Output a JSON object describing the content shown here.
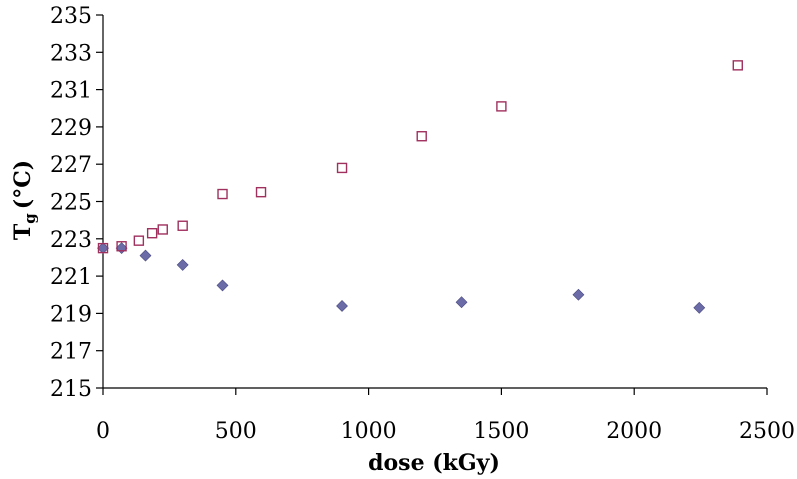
{
  "chart_data": {
    "type": "scatter",
    "title": "",
    "xlabel": "dose (kGy)",
    "ylabel_main": "T",
    "ylabel_sub": "g",
    "ylabel_unit": "(°C)",
    "xlim": [
      0,
      2500
    ],
    "ylim": [
      215,
      235
    ],
    "xticks": [
      0,
      500,
      1000,
      1500,
      2000,
      2500
    ],
    "yticks": [
      215,
      217,
      219,
      221,
      223,
      225,
      227,
      229,
      231,
      233,
      235
    ],
    "grid": false,
    "legend": "none",
    "series": [
      {
        "marker": "diamond",
        "color": "#6b6ba8",
        "x": [
          0,
          70,
          160,
          300,
          450,
          900,
          1350,
          1790,
          2245
        ],
        "y": [
          222.5,
          222.5,
          222.1,
          221.6,
          220.5,
          219.4,
          219.6,
          220.0,
          219.3
        ]
      },
      {
        "marker": "square-open",
        "color": "#a0305e",
        "x": [
          0,
          70,
          135,
          185,
          225,
          300,
          450,
          595,
          900,
          1200,
          1500,
          2390
        ],
        "y": [
          222.5,
          222.6,
          222.9,
          223.3,
          223.5,
          223.7,
          225.4,
          225.5,
          226.8,
          228.5,
          230.1,
          232.3
        ]
      }
    ]
  }
}
